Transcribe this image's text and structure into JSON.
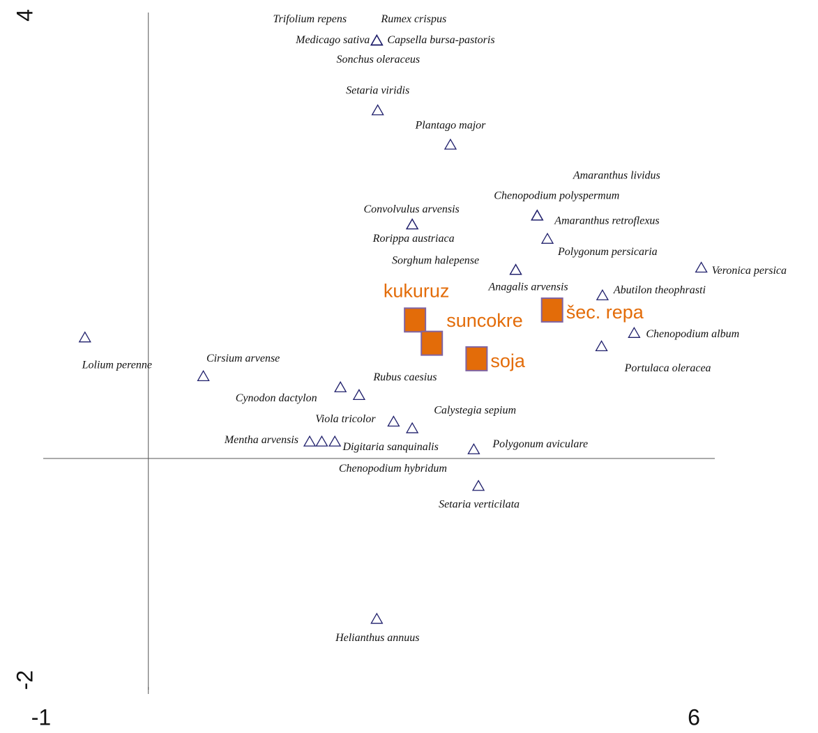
{
  "chart_data": {
    "type": "scatter",
    "xlim": [
      -1,
      6
    ],
    "ylim": [
      -2,
      4
    ],
    "xticks": [
      -1,
      6
    ],
    "yticks": [
      -2,
      4
    ],
    "series": [
      {
        "marker": "triangle",
        "color": "#1f1f6b",
        "labels": [
          "Trifolium repens",
          "Rumex crispus",
          "Medicago sativa",
          "Capsella bursa-pastoris",
          "Sonchus oleraceus",
          "Setaria viridis",
          "Plantago major",
          "Amaranthus lividus",
          "Chenopodium polyspermum",
          "Amaranthus retroflexus",
          "Polygonum persicaria",
          "Convolvulus arvensis",
          "Rorippa austriaca",
          "Sorghum halepense",
          "Anagalis arvensis",
          "Veronica persica",
          "Abutilon theophrasti",
          "Chenopodium album",
          "Portulaca oleracea",
          "Lolium perenne",
          "Cirsium arvense",
          "Cynodon dactylon",
          "Rubus caesius",
          "Viola tricolor",
          "Calystegia sepium",
          "Mentha arvensis",
          "Chenopodium hybridum",
          "Digitaria sanquinalis",
          "Polygonum aviculare",
          "Setaria verticilata",
          "Helianthus annuus"
        ],
        "x": [
          2.45,
          2.45,
          2.45,
          2.45,
          2.45,
          2.46,
          3.24,
          4.17,
          4.17,
          4.17,
          4.28,
          2.83,
          2.83,
          3.94,
          3.94,
          5.93,
          4.87,
          5.21,
          4.86,
          -0.68,
          0.59,
          2.06,
          2.26,
          2.63,
          2.83,
          1.73,
          1.86,
          2.0,
          3.49,
          3.54,
          2.45
        ],
        "values": [
          3.77,
          3.77,
          3.77,
          3.77,
          3.77,
          3.14,
          2.83,
          2.19,
          2.19,
          2.19,
          1.98,
          2.11,
          2.11,
          1.7,
          1.7,
          1.72,
          1.47,
          1.13,
          1.01,
          1.09,
          0.74,
          0.64,
          0.57,
          0.33,
          0.27,
          0.15,
          0.15,
          0.15,
          0.08,
          -0.25,
          -1.45
        ]
      },
      {
        "marker": "square",
        "color": "#e36c09",
        "labels": [
          "kukuruz",
          "suncokre",
          "soja",
          "šec. repa"
        ],
        "x": [
          2.86,
          3.04,
          3.52,
          4.33
        ],
        "values": [
          1.25,
          1.04,
          0.9,
          1.34
        ]
      }
    ]
  }
}
